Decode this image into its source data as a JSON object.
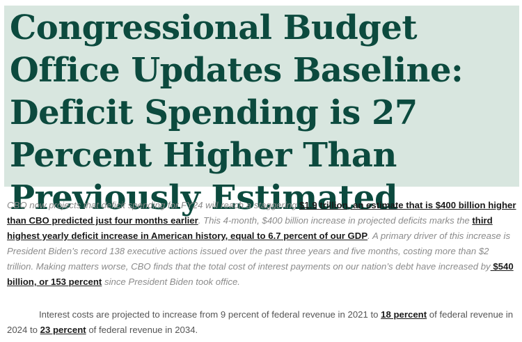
{
  "headline": "Congressional Budget Office Updates Baseline: Deficit Spending is 27 Percent Higher Than Previously Estimated",
  "paragraph1": {
    "t1": "CBO now projects that deficit spending for FY24 will reach a staggering ",
    "link1": "$1.9 trillion, an estimate that is $400 billion higher than CBO predicted just four months earlier",
    "t2": ". This 4-month, $400 billion increase in projected deficits marks the ",
    "link2": "third highest yearly deficit increase in American history, equal to 6.7 percent of our GDP",
    "t3": ". A primary driver of this increase is President Biden’s record 138 executive actions issued over the past three years and five months, costing more than $2 trillion. Making matters worse, CBO finds that the total cost of interest payments on our nation’s debt have increased by",
    "link3": " $540 billion, or 153 percent",
    "t4": " since President Biden took office."
  },
  "paragraph2": {
    "t1": "Interest costs are projected to increase from 9 percent of federal revenue in 2021 to ",
    "link1": "18 percent",
    "t2": " of federal revenue in 2024 to ",
    "link2": "23 percent",
    "t3": " of federal revenue in 2034."
  }
}
